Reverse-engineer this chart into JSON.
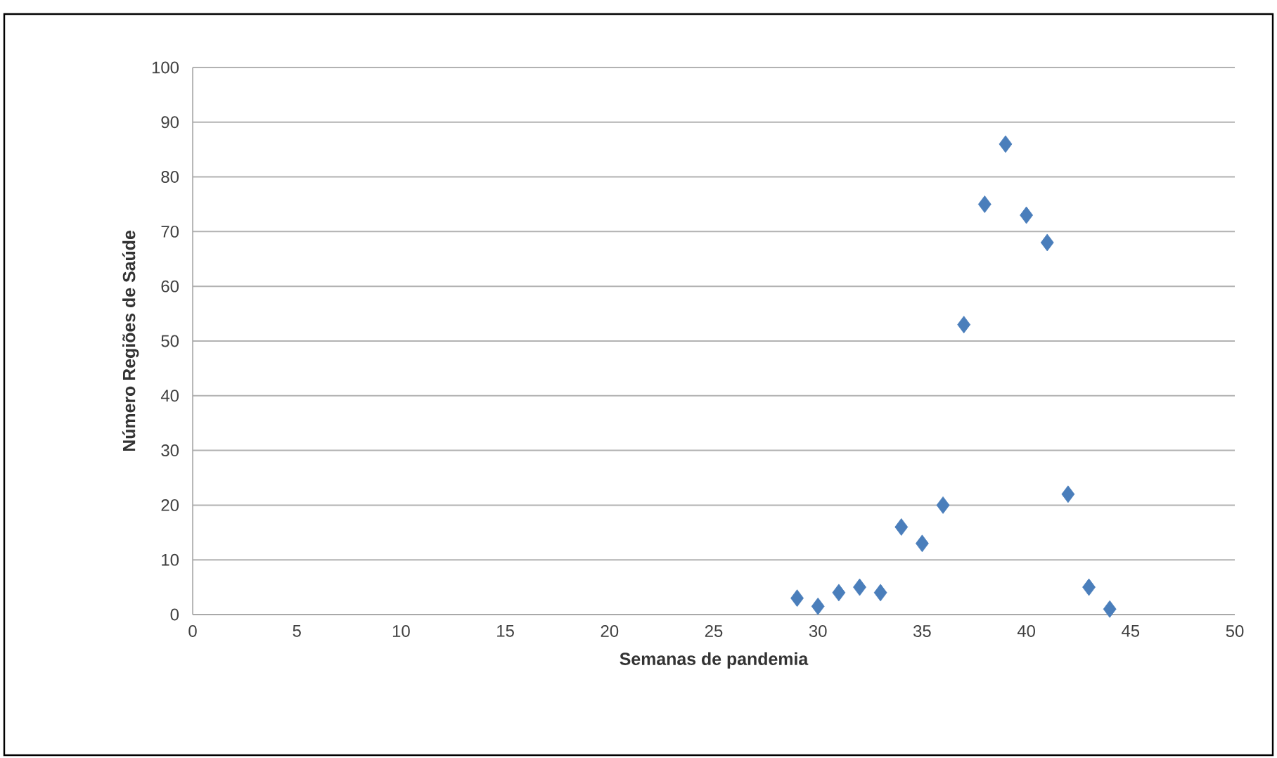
{
  "chart_data": {
    "type": "scatter",
    "xlabel": "Semanas de pandemia",
    "ylabel": "Número Regiões de Saúde",
    "x": [
      29,
      30,
      31,
      32,
      33,
      34,
      35,
      36,
      37,
      38,
      39,
      40,
      41,
      42,
      43,
      44
    ],
    "values": [
      3,
      1.5,
      4,
      5,
      4,
      16,
      13,
      20,
      53,
      75,
      86,
      73,
      68,
      22,
      5,
      1
    ],
    "color": "#4a7ebb",
    "marker": "diamond",
    "xlim": [
      0,
      50
    ],
    "xticks": [
      0,
      5,
      10,
      15,
      20,
      25,
      30,
      35,
      40,
      45,
      50
    ],
    "ylim": [
      0,
      100
    ],
    "yticks": [
      0,
      10,
      20,
      30,
      40,
      50,
      60,
      70,
      80,
      90,
      100
    ],
    "grid": "y"
  }
}
